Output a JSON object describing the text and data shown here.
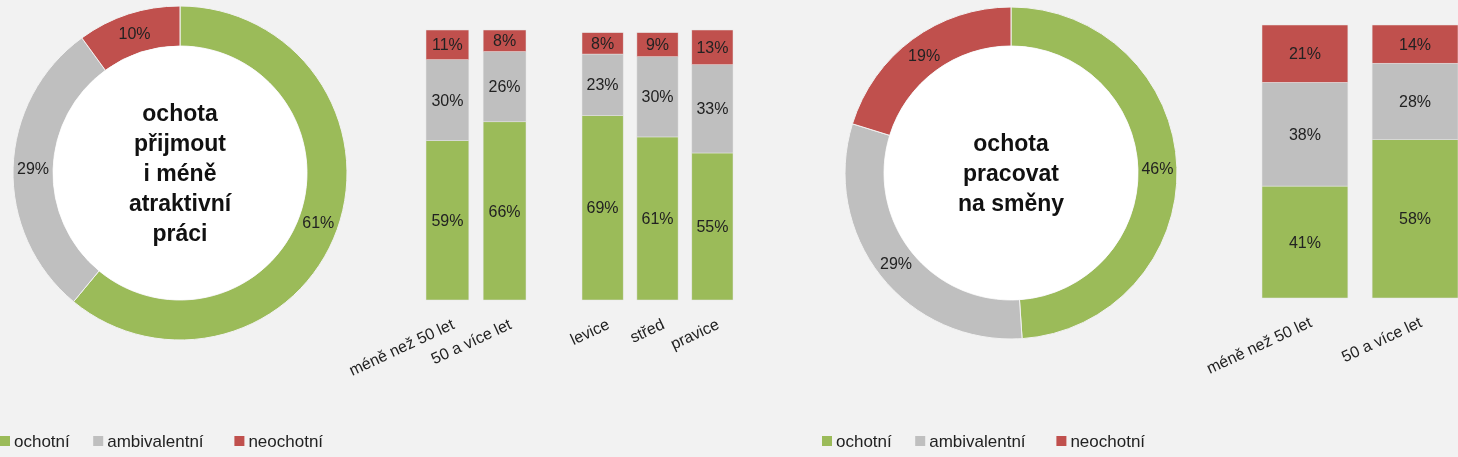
{
  "chart_data": [
    {
      "type": "donut",
      "title": "ochota\npřijmout\ni méně\natraktivní\npráci",
      "categories": [
        "ochotní",
        "ambivalentní",
        "neochotní"
      ],
      "values": [
        61,
        29,
        10
      ],
      "value_labels": [
        "61%",
        "29%",
        "10%"
      ],
      "colors": [
        "#9bbb59",
        "#bfbfbf",
        "#c0504d"
      ],
      "legend": "bottom"
    },
    {
      "type": "bar",
      "stacked": true,
      "categories": [
        "méně než 50 let",
        "50 a více let"
      ],
      "series": [
        {
          "color": "#9bbb59",
          "values": [
            59,
            66
          ],
          "value_labels": [
            "59%",
            "66%"
          ]
        },
        {
          "color": "#bfbfbf",
          "values": [
            30,
            26
          ],
          "value_labels": [
            "30%",
            "26%"
          ]
        },
        {
          "color": "#c0504d",
          "values": [
            11,
            8
          ],
          "value_labels": [
            "11%",
            "8%"
          ]
        }
      ]
    },
    {
      "type": "bar",
      "stacked": true,
      "categories": [
        "levice",
        "střed",
        "pravice"
      ],
      "series": [
        {
          "color": "#9bbb59",
          "values": [
            69,
            61,
            55
          ],
          "value_labels": [
            "69%",
            "61%",
            "55%"
          ]
        },
        {
          "color": "#bfbfbf",
          "values": [
            23,
            30,
            33
          ],
          "value_labels": [
            "23%",
            "30%",
            "33%"
          ]
        },
        {
          "color": "#c0504d",
          "values": [
            8,
            9,
            13
          ],
          "value_labels": [
            "8%",
            "9%",
            "13%"
          ]
        }
      ]
    },
    {
      "type": "donut",
      "title": "ochota\npracovat\nna směny",
      "categories": [
        "ochotní",
        "ambivalentní",
        "neochotní"
      ],
      "values": [
        46,
        29,
        19
      ],
      "value_labels": [
        "46%",
        "29%",
        "19%"
      ],
      "colors": [
        "#9bbb59",
        "#bfbfbf",
        "#c0504d"
      ],
      "legend": "bottom"
    },
    {
      "type": "bar",
      "stacked": true,
      "categories": [
        "méně než 50 let",
        "50 a více let"
      ],
      "series": [
        {
          "color": "#9bbb59",
          "values": [
            41,
            58
          ],
          "value_labels": [
            "41%",
            "58%"
          ]
        },
        {
          "color": "#bfbfbf",
          "values": [
            38,
            28
          ],
          "value_labels": [
            "38%",
            "28%"
          ]
        },
        {
          "color": "#c0504d",
          "values": [
            21,
            14
          ],
          "value_labels": [
            "21%",
            "14%"
          ]
        }
      ]
    }
  ]
}
